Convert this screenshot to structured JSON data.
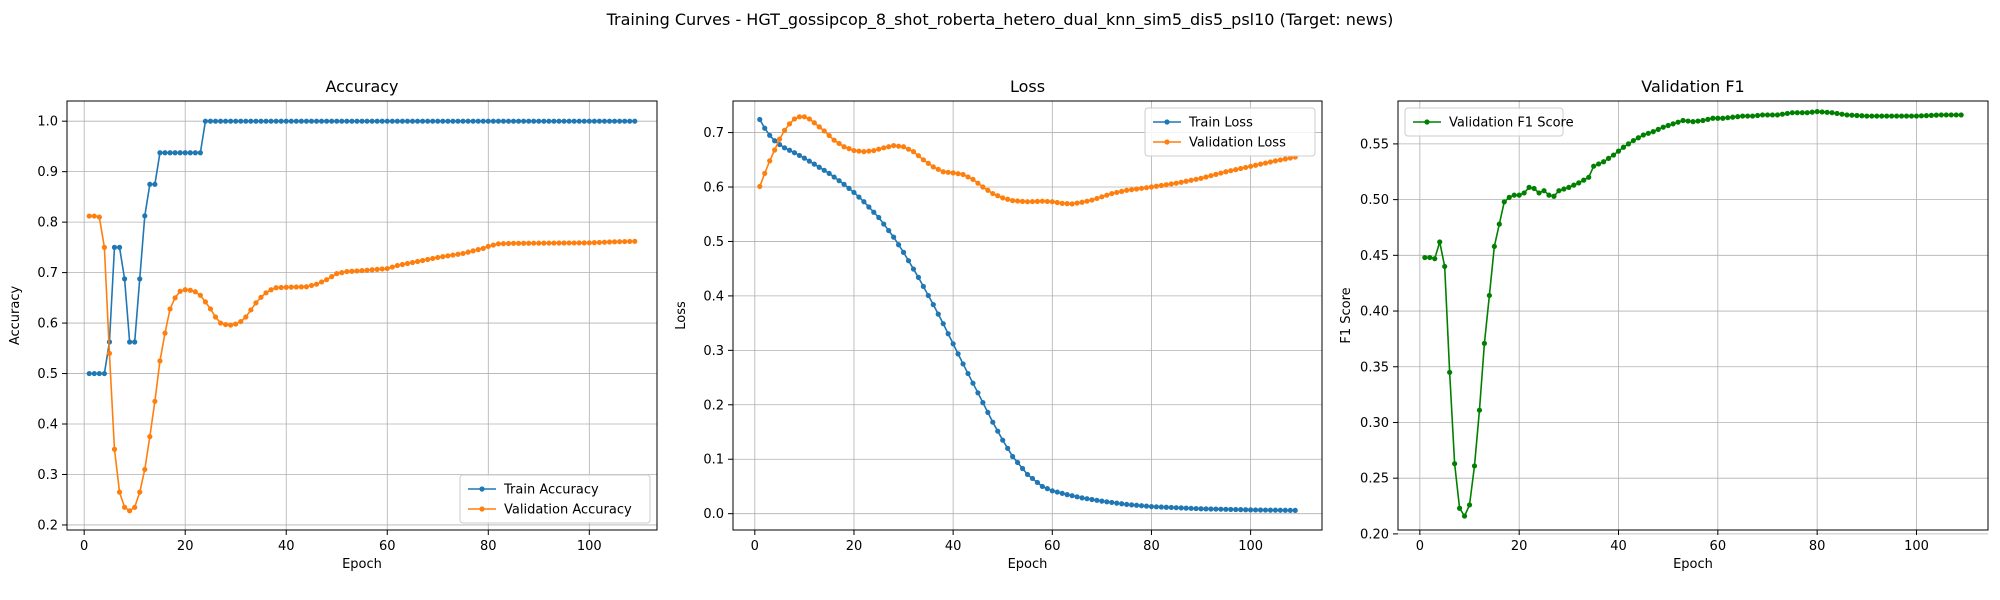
{
  "suptitle": "Training Curves - HGT_gossipcop_8_shot_roberta_hetero_dual_knn_sim5_dis5_psl10 (Target: news)",
  "chart_data": [
    {
      "type": "line",
      "title": "Accuracy",
      "xlabel": "Epoch",
      "ylabel": "Accuracy",
      "xlim": [
        -3.4,
        113.4
      ],
      "ylim": [
        0.19,
        1.04
      ],
      "xticks": [
        0,
        20,
        40,
        60,
        80,
        100
      ],
      "yticks": [
        0.2,
        0.3,
        0.4,
        0.5,
        0.6,
        0.7,
        0.8,
        0.9,
        1.0
      ],
      "ytick_labels": [
        "0.2",
        "0.3",
        "0.4",
        "0.5",
        "0.6",
        "0.7",
        "0.8",
        "0.9",
        "1.0"
      ],
      "grid": true,
      "legend_position": "lower right",
      "series": [
        {
          "name": "Train Accuracy",
          "color": "#1f77b4",
          "x_start": 1,
          "points": [
            [
              1,
              0.5
            ],
            [
              4,
              0.5
            ],
            [
              5,
              0.5625
            ],
            [
              6,
              0.75
            ],
            [
              7,
              0.75
            ],
            [
              8,
              0.6875
            ],
            [
              9,
              0.5625
            ],
            [
              10,
              0.5625
            ],
            [
              11,
              0.6875
            ],
            [
              12,
              0.8125
            ],
            [
              13,
              0.875
            ],
            [
              14,
              0.875
            ],
            [
              15,
              0.9375
            ],
            [
              23,
              0.9375
            ],
            [
              24,
              1.0
            ],
            [
              109,
              1.0
            ]
          ]
        },
        {
          "name": "Validation Accuracy",
          "color": "#ff7f0e",
          "x_start": 1,
          "points": [
            [
              1,
              0.812
            ],
            [
              2,
              0.812
            ],
            [
              3,
              0.81
            ],
            [
              4,
              0.75
            ],
            [
              5,
              0.54
            ],
            [
              6,
              0.35
            ],
            [
              7,
              0.265
            ],
            [
              8,
              0.235
            ],
            [
              9,
              0.228
            ],
            [
              10,
              0.235
            ],
            [
              11,
              0.265
            ],
            [
              12,
              0.31
            ],
            [
              13,
              0.375
            ],
            [
              14,
              0.445
            ],
            [
              15,
              0.525
            ],
            [
              16,
              0.58
            ],
            [
              17,
              0.628
            ],
            [
              18,
              0.65
            ],
            [
              19,
              0.663
            ],
            [
              20,
              0.666
            ],
            [
              21,
              0.665
            ],
            [
              22,
              0.662
            ],
            [
              23,
              0.655
            ],
            [
              24,
              0.642
            ],
            [
              25,
              0.628
            ],
            [
              26,
              0.612
            ],
            [
              27,
              0.6
            ],
            [
              28,
              0.597
            ],
            [
              29,
              0.596
            ],
            [
              30,
              0.598
            ],
            [
              31,
              0.603
            ],
            [
              32,
              0.612
            ],
            [
              33,
              0.626
            ],
            [
              34,
              0.64
            ],
            [
              35,
              0.651
            ],
            [
              36,
              0.66
            ],
            [
              37,
              0.666
            ],
            [
              38,
              0.67
            ],
            [
              40,
              0.671
            ],
            [
              44,
              0.672
            ],
            [
              46,
              0.677
            ],
            [
              48,
              0.686
            ],
            [
              49,
              0.692
            ],
            [
              50,
              0.698
            ],
            [
              52,
              0.702
            ],
            [
              55,
              0.704
            ],
            [
              60,
              0.708
            ],
            [
              62,
              0.714
            ],
            [
              66,
              0.722
            ],
            [
              70,
              0.73
            ],
            [
              75,
              0.738
            ],
            [
              79,
              0.748
            ],
            [
              80,
              0.752
            ],
            [
              82,
              0.757
            ],
            [
              85,
              0.758
            ],
            [
              100,
              0.759
            ],
            [
              105,
              0.761
            ],
            [
              109,
              0.762
            ]
          ]
        }
      ]
    },
    {
      "type": "line",
      "title": "Loss",
      "xlabel": "Epoch",
      "ylabel": "Loss",
      "xlim": [
        -4.4,
        114.4
      ],
      "ylim": [
        -0.03,
        0.758
      ],
      "xticks": [
        0,
        20,
        40,
        60,
        80,
        100
      ],
      "yticks": [
        0.0,
        0.1,
        0.2,
        0.3,
        0.4,
        0.5,
        0.6,
        0.7
      ],
      "ytick_labels": [
        "0.0",
        "0.1",
        "0.2",
        "0.3",
        "0.4",
        "0.5",
        "0.6",
        "0.7"
      ],
      "grid": true,
      "legend_position": "upper right",
      "series": [
        {
          "name": "Train Loss",
          "color": "#1f77b4",
          "x_start": 1,
          "points": [
            [
              1,
              0.724
            ],
            [
              2,
              0.708
            ],
            [
              3,
              0.695
            ],
            [
              4,
              0.685
            ],
            [
              5,
              0.678
            ],
            [
              6,
              0.672
            ],
            [
              8,
              0.663
            ],
            [
              10,
              0.653
            ],
            [
              12,
              0.642
            ],
            [
              15,
              0.625
            ],
            [
              18,
              0.605
            ],
            [
              20,
              0.59
            ],
            [
              22,
              0.573
            ],
            [
              25,
              0.544
            ],
            [
              28,
              0.508
            ],
            [
              30,
              0.48
            ],
            [
              33,
              0.434
            ],
            [
              36,
              0.384
            ],
            [
              38,
              0.349
            ],
            [
              40,
              0.312
            ],
            [
              42,
              0.275
            ],
            [
              45,
              0.222
            ],
            [
              48,
              0.168
            ],
            [
              50,
              0.135
            ],
            [
              52,
              0.105
            ],
            [
              55,
              0.072
            ],
            [
              58,
              0.05
            ],
            [
              60,
              0.042
            ],
            [
              63,
              0.035
            ],
            [
              66,
              0.029
            ],
            [
              70,
              0.023
            ],
            [
              75,
              0.017
            ],
            [
              80,
              0.013
            ],
            [
              85,
              0.011
            ],
            [
              90,
              0.009
            ],
            [
              95,
              0.008
            ],
            [
              100,
              0.007
            ],
            [
              109,
              0.006
            ]
          ]
        },
        {
          "name": "Validation Loss",
          "color": "#ff7f0e",
          "x_start": 1,
          "points": [
            [
              1,
              0.601
            ],
            [
              2,
              0.625
            ],
            [
              3,
              0.648
            ],
            [
              4,
              0.668
            ],
            [
              5,
              0.688
            ],
            [
              6,
              0.704
            ],
            [
              7,
              0.716
            ],
            [
              8,
              0.725
            ],
            [
              9,
              0.729
            ],
            [
              10,
              0.729
            ],
            [
              11,
              0.725
            ],
            [
              12,
              0.718
            ],
            [
              14,
              0.703
            ],
            [
              16,
              0.686
            ],
            [
              18,
              0.674
            ],
            [
              20,
              0.667
            ],
            [
              22,
              0.665
            ],
            [
              24,
              0.667
            ],
            [
              26,
              0.672
            ],
            [
              28,
              0.676
            ],
            [
              30,
              0.674
            ],
            [
              32,
              0.665
            ],
            [
              34,
              0.65
            ],
            [
              36,
              0.637
            ],
            [
              38,
              0.628
            ],
            [
              40,
              0.626
            ],
            [
              42,
              0.623
            ],
            [
              44,
              0.614
            ],
            [
              46,
              0.6
            ],
            [
              48,
              0.588
            ],
            [
              50,
              0.58
            ],
            [
              52,
              0.575
            ],
            [
              55,
              0.573
            ],
            [
              58,
              0.574
            ],
            [
              60,
              0.573
            ],
            [
              62,
              0.57
            ],
            [
              64,
              0.569
            ],
            [
              66,
              0.572
            ],
            [
              68,
              0.576
            ],
            [
              70,
              0.582
            ],
            [
              72,
              0.588
            ],
            [
              75,
              0.594
            ],
            [
              80,
              0.6
            ],
            [
              85,
              0.607
            ],
            [
              90,
              0.616
            ],
            [
              95,
              0.628
            ],
            [
              100,
              0.638
            ],
            [
              105,
              0.648
            ],
            [
              109,
              0.655
            ]
          ]
        }
      ]
    },
    {
      "type": "line",
      "title": "Validation F1",
      "xlabel": "Epoch",
      "ylabel": "F1 Score",
      "xlim": [
        -4.4,
        114.4
      ],
      "ylim": [
        0.2035,
        0.5885
      ],
      "xticks": [
        0,
        20,
        40,
        60,
        80,
        100
      ],
      "yticks": [
        0.2,
        0.25,
        0.3,
        0.35,
        0.4,
        0.45,
        0.5,
        0.55
      ],
      "ytick_labels": [
        "0.20",
        "0.25",
        "0.30",
        "0.35",
        "0.40",
        "0.45",
        "0.50",
        "0.55"
      ],
      "grid": true,
      "legend_position": "upper left",
      "series": [
        {
          "name": "Validation F1 Score",
          "color": "#008000",
          "x_start": 1,
          "points": [
            [
              1,
              0.448
            ],
            [
              2,
              0.448
            ],
            [
              3,
              0.447
            ],
            [
              4,
              0.462
            ],
            [
              5,
              0.44
            ],
            [
              6,
              0.345
            ],
            [
              7,
              0.263
            ],
            [
              8,
              0.223
            ],
            [
              9,
              0.216
            ],
            [
              10,
              0.226
            ],
            [
              11,
              0.261
            ],
            [
              12,
              0.311
            ],
            [
              13,
              0.371
            ],
            [
              14,
              0.414
            ],
            [
              15,
              0.458
            ],
            [
              16,
              0.478
            ],
            [
              17,
              0.498
            ],
            [
              18,
              0.502
            ],
            [
              19,
              0.504
            ],
            [
              20,
              0.504
            ],
            [
              21,
              0.506
            ],
            [
              22,
              0.511
            ],
            [
              23,
              0.51
            ],
            [
              24,
              0.506
            ],
            [
              25,
              0.508
            ],
            [
              26,
              0.504
            ],
            [
              27,
              0.503
            ],
            [
              28,
              0.508
            ],
            [
              30,
              0.511
            ],
            [
              32,
              0.515
            ],
            [
              34,
              0.52
            ],
            [
              35,
              0.53
            ],
            [
              37,
              0.534
            ],
            [
              39,
              0.54
            ],
            [
              41,
              0.547
            ],
            [
              43,
              0.553
            ],
            [
              45,
              0.558
            ],
            [
              47,
              0.561
            ],
            [
              49,
              0.565
            ],
            [
              51,
              0.568
            ],
            [
              53,
              0.571
            ],
            [
              55,
              0.57
            ],
            [
              57,
              0.571
            ],
            [
              59,
              0.573
            ],
            [
              61,
              0.573
            ],
            [
              63,
              0.574
            ],
            [
              65,
              0.575
            ],
            [
              67,
              0.575
            ],
            [
              69,
              0.576
            ],
            [
              72,
              0.576
            ],
            [
              75,
              0.578
            ],
            [
              78,
              0.578
            ],
            [
              80,
              0.579
            ],
            [
              83,
              0.578
            ],
            [
              86,
              0.576
            ],
            [
              90,
              0.575
            ],
            [
              95,
              0.575
            ],
            [
              100,
              0.575
            ],
            [
              105,
              0.576
            ],
            [
              109,
              0.576
            ]
          ]
        }
      ]
    }
  ]
}
